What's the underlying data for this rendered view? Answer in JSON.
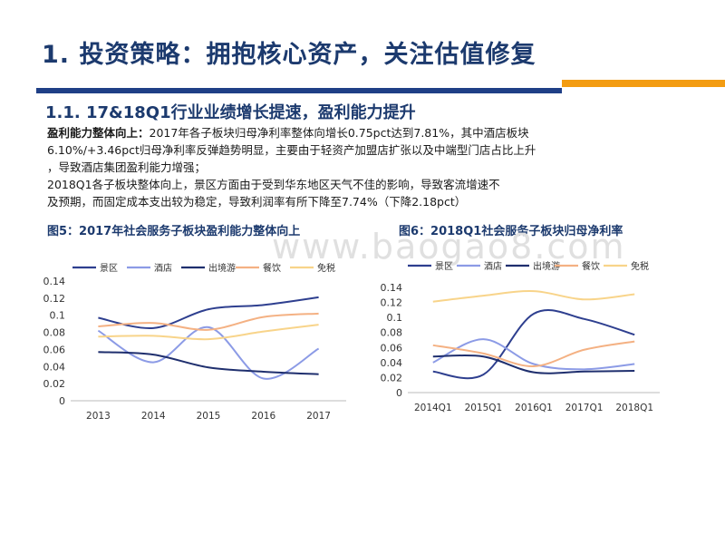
{
  "header": {
    "title": "1. 投资策略：拥抱核心资产，关注估值修复",
    "subtitle": "1.1. 17&18Q1行业业绩增长提速，盈利能力提升"
  },
  "body": {
    "p1_lead": "盈利能力整体向上：",
    "p1_line1": "2017年各子板块归母净利率整体向增长0.75pct达到7.81%，其中酒店板块",
    "p1_line2": "6.10%/+3.46pct归母净利率反弹趋势明显，主要由于轻资产加盟店扩张以及中端型门店占比上升",
    "p1_line3": "，导致酒店集团盈利能力增强；",
    "p2_line1": "2018Q1各子板块整体向上，景区方面由于受到华东地区天气不佳的影响，导致客流增速不",
    "p2_line2": "及预期，而固定成本支出较为稳定，导致利润率有所下降至7.74%（下降2.18pct）"
  },
  "watermark": "www.baogao8.com",
  "figures": {
    "fig5_title": "图5：2017年社会服务子板块盈利能力整体向上",
    "fig6_title": "图6：2018Q1社会服务子板块归母净利率"
  },
  "chart_data": [
    {
      "type": "line",
      "title": "图5：2017年社会服务子板块盈利能力整体向上",
      "categories": [
        "2013",
        "2014",
        "2015",
        "2016",
        "2017"
      ],
      "ylim": [
        0,
        0.14
      ],
      "yticks": [
        "0",
        "0.02",
        "0.04",
        "0.06",
        "0.08",
        "0.1",
        "0.12",
        "0.14"
      ],
      "series": [
        {
          "name": "景区",
          "color": "#2e3f8f",
          "values": [
            0.097,
            0.085,
            0.107,
            0.112,
            0.121
          ]
        },
        {
          "name": "酒店",
          "color": "#8c9be6",
          "values": [
            0.082,
            0.045,
            0.086,
            0.026,
            0.061
          ]
        },
        {
          "name": "出境游",
          "color": "#1f2f6e",
          "values": [
            0.057,
            0.054,
            0.039,
            0.034,
            0.031
          ]
        },
        {
          "name": "餐饮",
          "color": "#f4b183",
          "values": [
            0.087,
            0.091,
            0.083,
            0.098,
            0.102
          ]
        },
        {
          "name": "免税",
          "color": "#f8d48a",
          "values": [
            0.075,
            0.076,
            0.072,
            0.081,
            0.089
          ]
        }
      ]
    },
    {
      "type": "line",
      "title": "图6：2018Q1社会服务子板块归母净利率",
      "categories": [
        "2014Q1",
        "2015Q1",
        "2016Q1",
        "2017Q1",
        "2018Q1"
      ],
      "ylim": [
        0,
        0.14
      ],
      "yticks": [
        "0",
        "0.02",
        "0.04",
        "0.06",
        "0.08",
        "0.1",
        "0.12",
        "0.14"
      ],
      "series": [
        {
          "name": "景区",
          "color": "#2e3f8f",
          "values": [
            0.028,
            0.024,
            0.105,
            0.098,
            0.077
          ]
        },
        {
          "name": "酒店",
          "color": "#8c9be6",
          "values": [
            0.04,
            0.071,
            0.038,
            0.031,
            0.038
          ]
        },
        {
          "name": "出境游",
          "color": "#1f2f6e",
          "values": [
            0.048,
            0.048,
            0.027,
            0.028,
            0.029
          ]
        },
        {
          "name": "餐饮",
          "color": "#f4b183",
          "values": [
            0.063,
            0.052,
            0.035,
            0.057,
            0.068
          ]
        },
        {
          "name": "免税",
          "color": "#f8d48a",
          "values": [
            0.121,
            0.129,
            0.135,
            0.124,
            0.131
          ]
        }
      ]
    }
  ]
}
